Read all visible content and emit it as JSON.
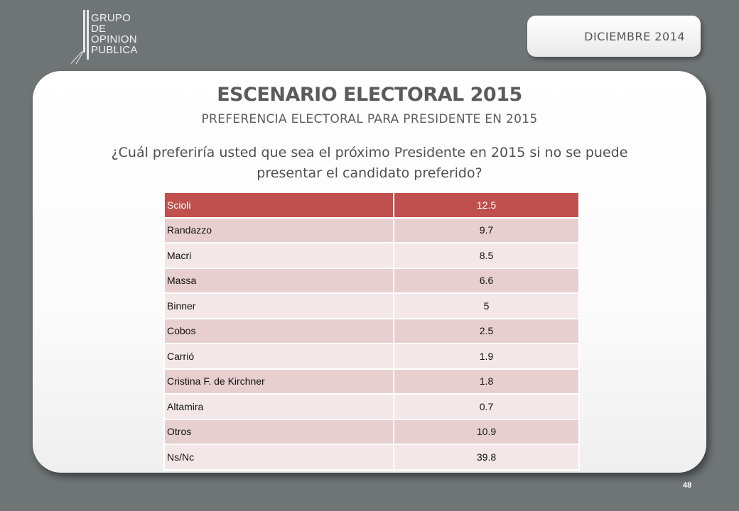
{
  "logo": {
    "lines": [
      "GRUPO",
      "DE",
      "OPINION",
      "PUBLICA"
    ]
  },
  "date_label": "DICIEMBRE  2014",
  "title": "ESCENARIO ELECTORAL 2015",
  "subtitle": "PREFERENCIA ELECTORAL PARA PRESIDENTE EN 2015",
  "question": {
    "line1": "¿Cuál preferiría usted que sea el próximo Presidente en 2015 si no se puede",
    "line2": "presentar el candidato preferido?"
  },
  "table": {
    "rows": [
      {
        "name": "Scioli",
        "value": "12.5"
      },
      {
        "name": "Randazzo",
        "value": "9.7"
      },
      {
        "name": "Macri",
        "value": "8.5"
      },
      {
        "name": "Massa",
        "value": "6.6"
      },
      {
        "name": "Binner",
        "value": "5"
      },
      {
        "name": "Cobos",
        "value": "2.5"
      },
      {
        "name": "Carrió",
        "value": "1.9"
      },
      {
        "name": "Cristina F. de Kirchner",
        "value": "1.8"
      },
      {
        "name": "Altamira",
        "value": "0.7"
      },
      {
        "name": "Otros",
        "value": "10.9"
      },
      {
        "name": "Ns/Nc",
        "value": "39.8"
      }
    ]
  },
  "page_number": "48",
  "colors": {
    "header_row": "#c0504d",
    "row_dark": "#e8cfcf",
    "row_light": "#f3e7e7",
    "background": "#6f7575"
  }
}
